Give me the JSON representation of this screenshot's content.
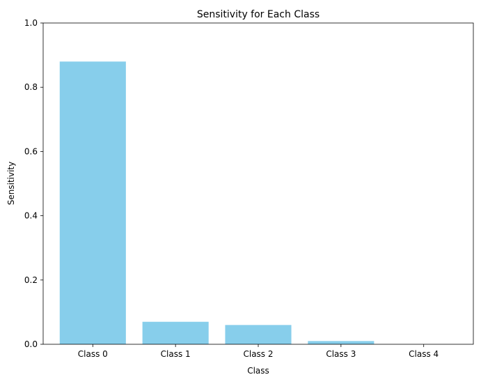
{
  "chart_data": {
    "type": "bar",
    "title": "Sensitivity for Each Class",
    "xlabel": "Class",
    "ylabel": "Sensitivity",
    "categories": [
      "Class 0",
      "Class 1",
      "Class 2",
      "Class 3",
      "Class 4"
    ],
    "values": [
      0.88,
      0.07,
      0.06,
      0.01,
      0.0
    ],
    "ylim": [
      0,
      1
    ],
    "yticks": [
      0.0,
      0.2,
      0.4,
      0.6,
      0.8,
      1.0
    ],
    "ytick_labels": [
      "0.0",
      "0.2",
      "0.4",
      "0.6",
      "0.8",
      "1.0"
    ],
    "bar_color": "#87ceeb",
    "grid": false,
    "legend": "none"
  }
}
